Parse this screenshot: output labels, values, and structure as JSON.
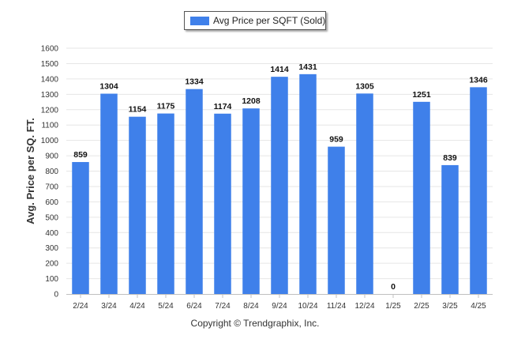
{
  "legend": {
    "label": "Avg Price per SQFT (Sold)"
  },
  "copyright": "Copyright © Trendgraphix, Inc.",
  "colors": {
    "bar": "#3f80ea",
    "grid": "#e6e6e6",
    "axis": "#c0c0c0"
  },
  "chart_data": {
    "type": "bar",
    "categories": [
      "2/24",
      "3/24",
      "4/24",
      "5/24",
      "6/24",
      "7/24",
      "8/24",
      "9/24",
      "10/24",
      "11/24",
      "12/24",
      "1/25",
      "2/25",
      "3/25",
      "4/25"
    ],
    "series": [
      {
        "name": "Avg Price per SQFT (Sold)",
        "values": [
          859,
          1304,
          1154,
          1175,
          1334,
          1174,
          1208,
          1414,
          1431,
          959,
          1305,
          0,
          1251,
          839,
          1346
        ]
      }
    ],
    "data_labels": [
      "859",
      "1304",
      "1154",
      "1175",
      "1334",
      "1174",
      "1208",
      "1414",
      "1431",
      "959",
      "1305",
      "0",
      "1251",
      "839",
      "1346"
    ],
    "ylabel": "Avg. Price per SQ. FT.",
    "xlabel": "",
    "ylim": [
      0,
      1600
    ],
    "yticks": [
      0,
      100,
      200,
      300,
      400,
      500,
      600,
      700,
      800,
      900,
      1000,
      1100,
      1200,
      1300,
      1400,
      1500,
      1600
    ],
    "grid": true,
    "legend_position": "top-center"
  }
}
